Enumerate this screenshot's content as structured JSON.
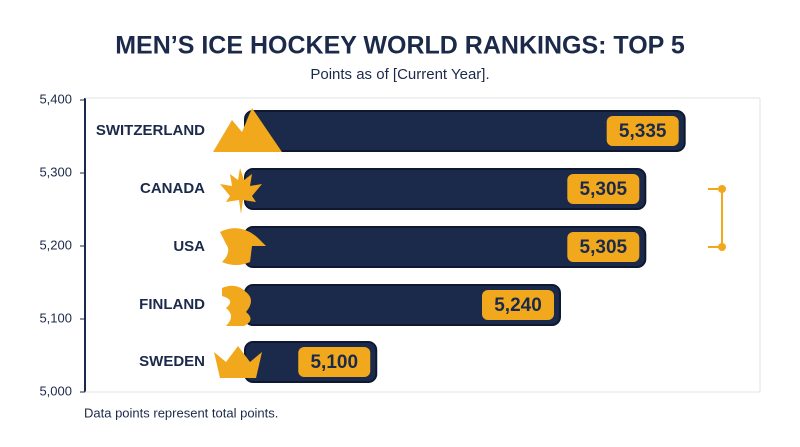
{
  "chart_data": {
    "type": "bar",
    "title": "MEN’S ICE HOCKEY WORLD RANKINGS: TOP 5",
    "subtitle": "Points as of [Current Year].",
    "annotation": "Data points represent total points.",
    "categories": [
      "SWITZERLAND",
      "CANADA",
      "USA",
      "FINLAND",
      "SWEDEN"
    ],
    "values": [
      5335,
      5305,
      5305,
      5240,
      5100
    ],
    "value_labels": [
      "5,335",
      "5,305",
      "5,305",
      "5,240",
      "5,100"
    ],
    "color": "#1b2a4a",
    "label_color": "#f2a81d",
    "ylim": [
      5000,
      5400
    ],
    "yticks": [
      {
        "value": 5400,
        "label": "5,400"
      },
      {
        "value": 5300,
        "label": "5,300"
      },
      {
        "value": 5200,
        "label": "5,200"
      },
      {
        "value": 5100,
        "label": "5,100"
      },
      {
        "value": 5000,
        "label": "5,000"
      }
    ]
  }
}
